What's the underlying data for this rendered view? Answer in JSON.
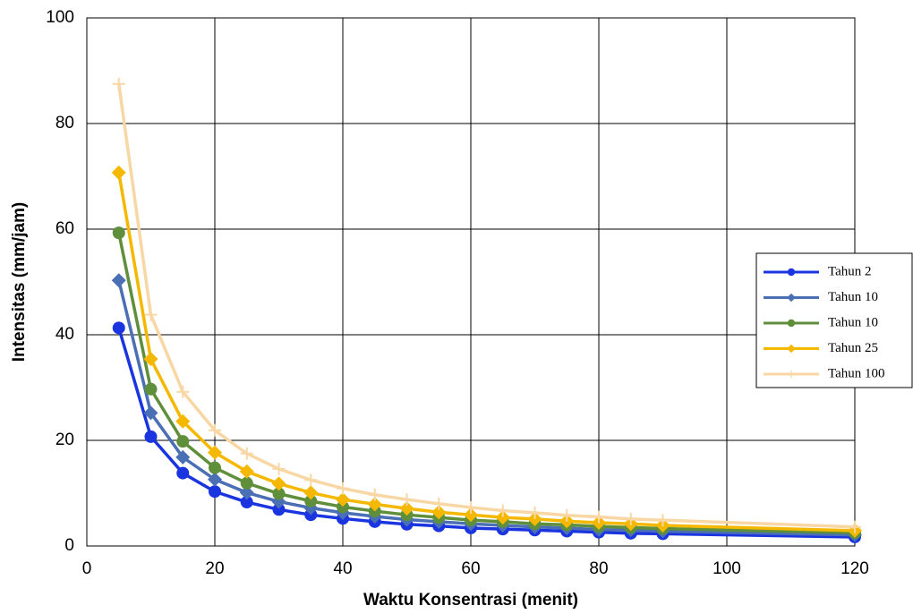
{
  "chart_data": {
    "type": "line",
    "x_label": "Waktu Konsentrasi (menit)",
    "y_label": "Intensitas (mm/jam)",
    "x": [
      5,
      10,
      15,
      20,
      25,
      30,
      35,
      40,
      45,
      50,
      55,
      60,
      65,
      70,
      75,
      80,
      85,
      90,
      120
    ],
    "series": [
      {
        "name": "Tahun 2",
        "color": "#1a35e0",
        "marker": "circle",
        "values": [
          41.3,
          20.7,
          13.8,
          10.3,
          8.3,
          6.9,
          5.9,
          5.2,
          4.6,
          4.1,
          3.8,
          3.4,
          3.2,
          3.0,
          2.8,
          2.6,
          2.4,
          2.3,
          1.7
        ]
      },
      {
        "name": "Tahun 10",
        "color": "#4a6fb5",
        "marker": "diamond",
        "values": [
          50.3,
          25.2,
          16.8,
          12.6,
          10.1,
          8.4,
          7.2,
          6.3,
          5.6,
          5.0,
          4.6,
          4.2,
          3.9,
          3.6,
          3.4,
          3.1,
          3.0,
          2.8,
          2.1
        ]
      },
      {
        "name": "Tahun 10",
        "color": "#5f8f3a",
        "marker": "circle",
        "values": [
          59.3,
          29.7,
          19.8,
          14.8,
          11.9,
          9.9,
          8.5,
          7.4,
          6.6,
          5.9,
          5.4,
          4.9,
          4.6,
          4.2,
          4.0,
          3.7,
          3.5,
          3.3,
          2.5
        ]
      },
      {
        "name": "Tahun 25",
        "color": "#f5b800",
        "marker": "diamond",
        "values": [
          70.7,
          35.4,
          23.6,
          17.7,
          14.1,
          11.8,
          10.1,
          8.8,
          7.9,
          7.1,
          6.4,
          5.9,
          5.4,
          5.1,
          4.7,
          4.4,
          4.2,
          3.9,
          2.9
        ]
      },
      {
        "name": "Tahun 100",
        "color": "#f8d7a4",
        "marker": "plus",
        "values": [
          87.5,
          43.8,
          29.2,
          21.9,
          17.5,
          14.6,
          12.5,
          10.9,
          9.7,
          8.8,
          8.0,
          7.3,
          6.7,
          6.3,
          5.8,
          5.5,
          5.1,
          4.9,
          3.6
        ]
      }
    ],
    "xlim": [
      0,
      120
    ],
    "xticks": [
      0,
      20,
      40,
      60,
      80,
      100,
      120
    ],
    "ylim": [
      0,
      100
    ],
    "yticks": [
      0,
      20,
      40,
      60,
      80,
      100
    ],
    "grid": true,
    "legend": "right"
  }
}
